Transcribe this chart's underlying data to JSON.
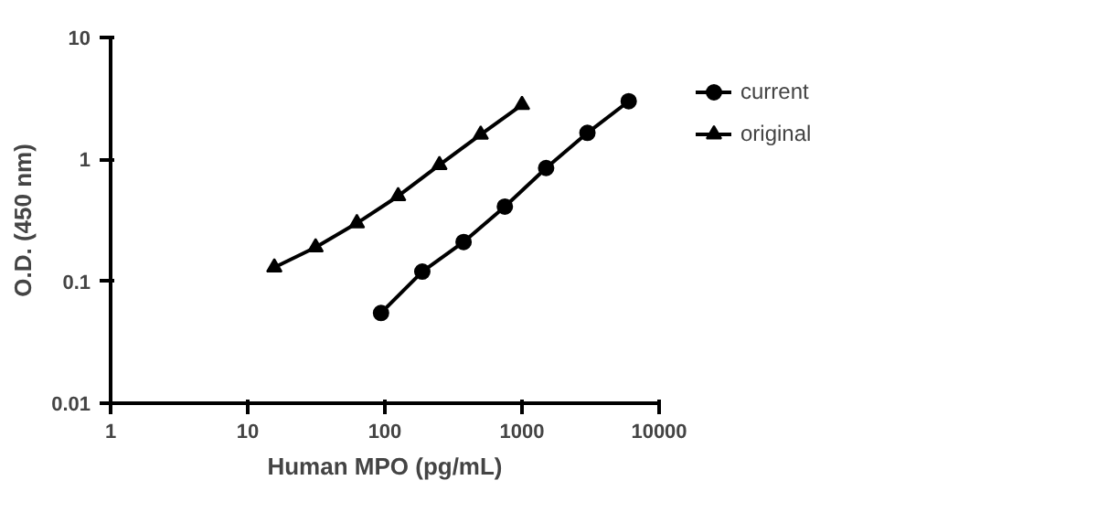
{
  "chart_data": {
    "type": "line",
    "xlabel": "Human MPO (pg/mL)",
    "ylabel": "O.D. (450 nm)",
    "log": "xy",
    "xlim": [
      1,
      10000
    ],
    "ylim": [
      0.01,
      10
    ],
    "xticks": [
      1,
      10,
      100,
      1000,
      10000
    ],
    "yticks": [
      0.01,
      0.1,
      1,
      10
    ],
    "grid": false,
    "legend": "top right",
    "series": [
      {
        "name": "current",
        "color": "#000000",
        "marker": "circle",
        "x": [
          93.75,
          187.5,
          375,
          750,
          1500,
          3000,
          6000
        ],
        "values": [
          0.055,
          0.12,
          0.21,
          0.41,
          0.85,
          1.65,
          3.0
        ]
      },
      {
        "name": "original",
        "color": "#000000",
        "marker": "triangle",
        "x": [
          15.625,
          31.25,
          62.5,
          125,
          250,
          500,
          1000
        ],
        "values": [
          0.13,
          0.19,
          0.3,
          0.5,
          0.9,
          1.6,
          2.8
        ]
      }
    ]
  }
}
